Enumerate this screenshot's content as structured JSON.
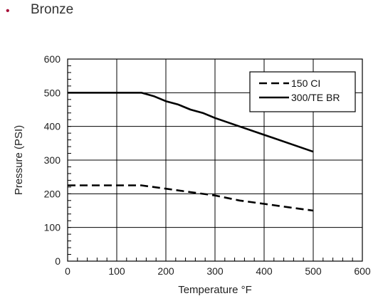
{
  "heading": {
    "bullet": "•",
    "text": "Bronze"
  },
  "colors": {
    "bullet": "#a8123a",
    "line": "#000000",
    "grid": "#000000"
  },
  "chart_data": {
    "type": "line",
    "title": "",
    "xlabel": "Temperature °F",
    "ylabel": "Pressure (PSI)",
    "xlim": [
      0,
      600
    ],
    "ylim": [
      0,
      600
    ],
    "xticks": [
      0,
      100,
      200,
      300,
      400,
      500,
      600
    ],
    "yticks": [
      0,
      100,
      200,
      300,
      400,
      500,
      600
    ],
    "grid": true,
    "legend_position": "top-right",
    "series": [
      {
        "name": "150 CI",
        "style": "dashed",
        "x": [
          0,
          150,
          200,
          250,
          300,
          350,
          400,
          450,
          500
        ],
        "y": [
          225,
          225,
          215,
          205,
          195,
          180,
          170,
          160,
          150
        ]
      },
      {
        "name": "300/TE BR",
        "style": "solid",
        "x": [
          0,
          150,
          175,
          200,
          225,
          250,
          275,
          300,
          350,
          400,
          450,
          500
        ],
        "y": [
          500,
          500,
          490,
          475,
          465,
          450,
          440,
          425,
          400,
          375,
          350,
          325
        ]
      }
    ]
  }
}
